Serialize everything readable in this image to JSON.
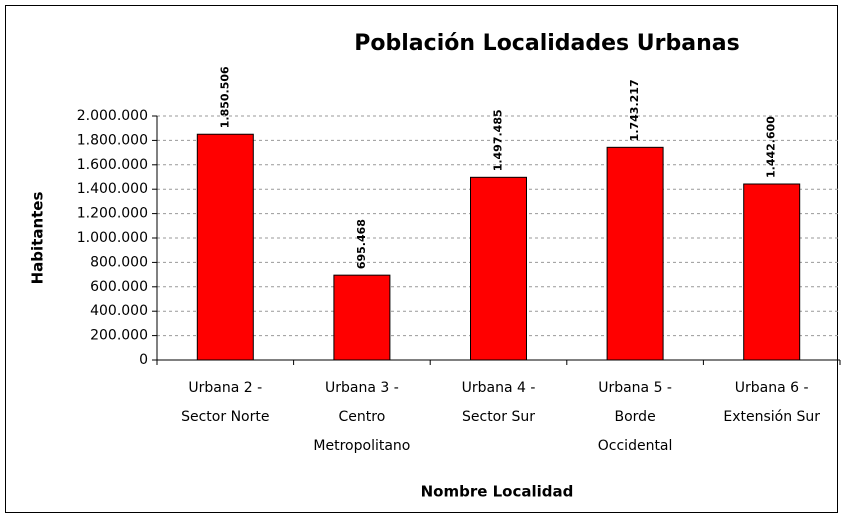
{
  "chart_data": {
    "type": "bar",
    "title": "Población Localidades Urbanas",
    "x_label": "Nombre Localidad",
    "y_label": "Habitantes",
    "categories": [
      [
        "Urbana 2 -",
        "Sector Norte"
      ],
      [
        "Urbana 3 -",
        "Centro",
        "Metropolitano"
      ],
      [
        "Urbana 4 -",
        "Sector Sur"
      ],
      [
        "Urbana 5 -",
        "Borde",
        "Occidental"
      ],
      [
        "Urbana 6 -",
        "Extensión Sur"
      ]
    ],
    "values": [
      1850506,
      695468,
      1497485,
      1743217,
      1442600
    ],
    "value_labels": [
      "1.850.506",
      "695.468",
      "1.497.485",
      "1.743.217",
      "1.442.600"
    ],
    "color": "#ff0000",
    "ylim": [
      0,
      2000000
    ],
    "yticks": [
      0,
      {
        "value": 200000,
        "label": "200.000"
      },
      {
        "value": 400000,
        "label": "400.000"
      },
      {
        "value": 600000,
        "label": "600.000"
      },
      {
        "value": 800000,
        "label": "800.000"
      },
      {
        "value": 1000000,
        "label": "1.000.000"
      },
      {
        "value": 1200000,
        "label": "1.200.000"
      },
      {
        "value": 1400000,
        "label": "1.400.000"
      },
      {
        "value": 1600000,
        "label": "1.600.000"
      },
      {
        "value": 1800000,
        "label": "1.800.000"
      },
      {
        "value": 2000000,
        "label": "2.000.000"
      }
    ],
    "grid": true
  }
}
